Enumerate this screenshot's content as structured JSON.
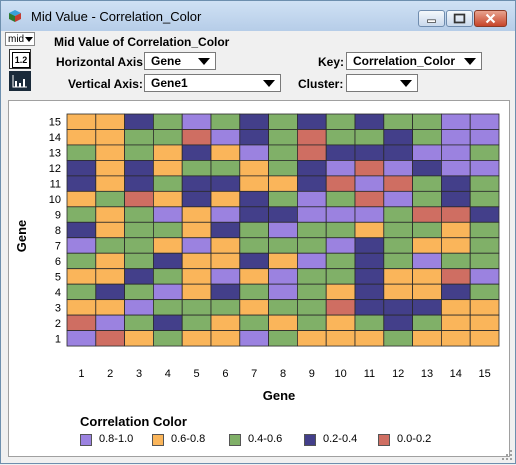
{
  "window": {
    "title": "Mid Value - Correlation_Color"
  },
  "toolbar": {
    "mode_label": "mid",
    "scale_label": "1.2"
  },
  "header": {
    "subtitle": "Mid Value of Correlation_Color"
  },
  "controls": {
    "horizontal_axis_label": "Horizontal Axis:",
    "horizontal_axis_value": "Gene",
    "vertical_axis_label": "Vertical Axis:",
    "vertical_axis_value": "Gene1",
    "key_label": "Key:",
    "key_value": "Correlation_Color",
    "cluster_label": "Cluster:",
    "cluster_value": ""
  },
  "colors": {
    "c0": "#9b82e0",
    "c1": "#fab55a",
    "c2": "#80b068",
    "c3": "#433f8a",
    "c4": "#cf6e62"
  },
  "chart_data": {
    "type": "heatmap",
    "xlabel": "Gene",
    "ylabel": "Gene",
    "x_ticks": [
      "1",
      "2",
      "3",
      "4",
      "5",
      "6",
      "7",
      "8",
      "9",
      "10",
      "11",
      "12",
      "13",
      "14",
      "15"
    ],
    "y_ticks": [
      "1",
      "2",
      "3",
      "4",
      "5",
      "6",
      "7",
      "8",
      "9",
      "10",
      "11",
      "12",
      "13",
      "14",
      "15"
    ],
    "legend_title": "Correlation Color",
    "legend": [
      {
        "label": "0.8-1.0",
        "color": "#9b82e0"
      },
      {
        "label": "0.6-0.8",
        "color": "#fab55a"
      },
      {
        "label": "0.4-0.6",
        "color": "#80b068"
      },
      {
        "label": "0.2-0.4",
        "color": "#433f8a"
      },
      {
        "label": "0.0-0.2",
        "color": "#cf6e62"
      }
    ],
    "rows_top_to_bottom": [
      [
        1,
        1,
        3,
        2,
        0,
        2,
        3,
        2,
        3,
        2,
        3,
        2,
        2,
        0,
        0
      ],
      [
        1,
        1,
        2,
        2,
        4,
        0,
        3,
        2,
        4,
        2,
        2,
        3,
        2,
        0,
        0
      ],
      [
        2,
        1,
        2,
        1,
        3,
        1,
        0,
        2,
        4,
        3,
        3,
        3,
        0,
        0,
        2
      ],
      [
        3,
        1,
        3,
        1,
        2,
        2,
        1,
        2,
        3,
        0,
        4,
        0,
        3,
        0,
        0
      ],
      [
        3,
        1,
        3,
        2,
        3,
        3,
        1,
        1,
        3,
        4,
        0,
        4,
        2,
        3,
        2
      ],
      [
        1,
        2,
        4,
        1,
        3,
        1,
        3,
        2,
        0,
        2,
        4,
        0,
        2,
        3,
        2
      ],
      [
        2,
        1,
        2,
        0,
        1,
        0,
        3,
        3,
        0,
        0,
        0,
        2,
        4,
        4,
        3
      ],
      [
        3,
        1,
        2,
        2,
        1,
        3,
        2,
        0,
        2,
        2,
        1,
        2,
        2,
        1,
        2
      ],
      [
        0,
        2,
        2,
        1,
        0,
        1,
        2,
        2,
        2,
        0,
        3,
        2,
        1,
        1,
        2
      ],
      [
        2,
        1,
        2,
        3,
        1,
        1,
        3,
        1,
        0,
        2,
        3,
        2,
        0,
        2,
        2
      ],
      [
        1,
        1,
        3,
        2,
        1,
        0,
        1,
        0,
        2,
        2,
        3,
        1,
        1,
        4,
        0
      ],
      [
        2,
        3,
        2,
        0,
        1,
        3,
        2,
        0,
        2,
        1,
        3,
        1,
        1,
        3,
        2
      ],
      [
        1,
        1,
        0,
        2,
        2,
        2,
        1,
        2,
        2,
        4,
        3,
        3,
        3,
        1,
        1
      ],
      [
        4,
        0,
        2,
        3,
        2,
        1,
        2,
        1,
        2,
        1,
        2,
        3,
        2,
        1,
        1
      ],
      [
        0,
        4,
        1,
        2,
        1,
        1,
        0,
        2,
        1,
        1,
        1,
        2,
        1,
        1,
        1
      ]
    ]
  }
}
